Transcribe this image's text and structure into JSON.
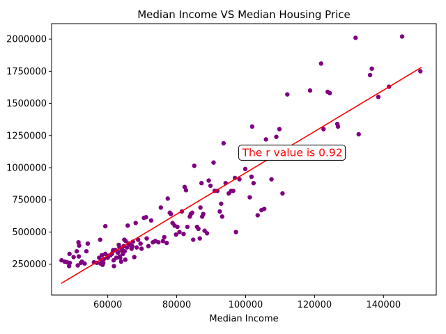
{
  "chart_data": {
    "type": "scatter",
    "title": "Median Income VS Median Housing Price",
    "xlabel": "Median Income",
    "ylabel": "",
    "xlim": [
      43700,
      155300
    ],
    "ylim": [
      10000,
      2120000
    ],
    "xticks": [
      60000,
      80000,
      100000,
      120000,
      140000
    ],
    "yticks": [
      250000,
      500000,
      750000,
      1000000,
      1250000,
      1500000,
      1750000,
      2000000
    ],
    "xtick_labels": [
      "60000",
      "80000",
      "100000",
      "120000",
      "140000"
    ],
    "ytick_labels": [
      "250000",
      "500000",
      "750000",
      "1000000",
      "1250000",
      "1500000",
      "1750000",
      "2000000"
    ],
    "grid": false,
    "point_color": "#800080",
    "line_color": "#ff0000",
    "annotation": {
      "text": "The r value is 0.92",
      "color": "#ff0000",
      "x": 99000,
      "y": 1090000
    },
    "regression_line": {
      "x": [
        46500,
        151000
      ],
      "y": [
        100000,
        1780000
      ]
    },
    "series": [
      {
        "points": [
          [
            46600,
            280000
          ],
          [
            47500,
            270000
          ],
          [
            48200,
            265000
          ],
          [
            48800,
            235000
          ],
          [
            48900,
            330000
          ],
          [
            49000,
            260000
          ],
          [
            50100,
            305000
          ],
          [
            51000,
            350000
          ],
          [
            51300,
            240000
          ],
          [
            51500,
            420000
          ],
          [
            51600,
            310000
          ],
          [
            51700,
            395000
          ],
          [
            52200,
            260000
          ],
          [
            52500,
            270000
          ],
          [
            53300,
            255000
          ],
          [
            53800,
            350000
          ],
          [
            54200,
            410000
          ],
          [
            56000,
            265000
          ],
          [
            56800,
            260000
          ],
          [
            57500,
            300000
          ],
          [
            57800,
            440000
          ],
          [
            57900,
            255000
          ],
          [
            58200,
            280000
          ],
          [
            58300,
            320000
          ],
          [
            58500,
            245000
          ],
          [
            58700,
            260000
          ],
          [
            58900,
            290000
          ],
          [
            59300,
            330000
          ],
          [
            59300,
            545000
          ],
          [
            60000,
            300000
          ],
          [
            60300,
            315000
          ],
          [
            60800,
            320000
          ],
          [
            61200,
            330000
          ],
          [
            61500,
            350000
          ],
          [
            61600,
            360000
          ],
          [
            61700,
            280000
          ],
          [
            61800,
            235000
          ],
          [
            62200,
            360000
          ],
          [
            62500,
            300000
          ],
          [
            62900,
            340000
          ],
          [
            63100,
            345000
          ],
          [
            63200,
            400000
          ],
          [
            63400,
            380000
          ],
          [
            63500,
            310000
          ],
          [
            63600,
            300000
          ],
          [
            63900,
            270000
          ],
          [
            64200,
            360000
          ],
          [
            64400,
            330000
          ],
          [
            64600,
            390000
          ],
          [
            64800,
            440000
          ],
          [
            64900,
            350000
          ],
          [
            65100,
            285000
          ],
          [
            65200,
            430000
          ],
          [
            65600,
            380000
          ],
          [
            65800,
            550000
          ],
          [
            66100,
            410000
          ],
          [
            66400,
            400000
          ],
          [
            66900,
            370000
          ],
          [
            67100,
            390000
          ],
          [
            67300,
            425000
          ],
          [
            67700,
            305000
          ],
          [
            68100,
            570000
          ],
          [
            68400,
            380000
          ],
          [
            68800,
            440000
          ],
          [
            69500,
            410000
          ],
          [
            69800,
            370000
          ],
          [
            70500,
            610000
          ],
          [
            71100,
            615000
          ],
          [
            71300,
            450000
          ],
          [
            71800,
            390000
          ],
          [
            72600,
            590000
          ],
          [
            73100,
            420000
          ],
          [
            73800,
            430000
          ],
          [
            74700,
            420000
          ],
          [
            75400,
            690000
          ],
          [
            76000,
            430000
          ],
          [
            76400,
            460000
          ],
          [
            77100,
            415000
          ],
          [
            77400,
            760000
          ],
          [
            78000,
            650000
          ],
          [
            78300,
            640000
          ],
          [
            78800,
            570000
          ],
          [
            79400,
            550000
          ],
          [
            79800,
            480000
          ],
          [
            80200,
            540000
          ],
          [
            80800,
            500000
          ],
          [
            81500,
            660000
          ],
          [
            82000,
            485000
          ],
          [
            82300,
            850000
          ],
          [
            82700,
            825000
          ],
          [
            83100,
            540000
          ],
          [
            83800,
            620000
          ],
          [
            84100,
            640000
          ],
          [
            84500,
            650000
          ],
          [
            84800,
            440000
          ],
          [
            85100,
            1015000
          ],
          [
            85900,
            540000
          ],
          [
            86300,
            525000
          ],
          [
            86700,
            450000
          ],
          [
            86900,
            690000
          ],
          [
            87200,
            880000
          ],
          [
            87400,
            620000
          ],
          [
            87700,
            640000
          ],
          [
            88100,
            510000
          ],
          [
            88800,
            490000
          ],
          [
            89300,
            900000
          ],
          [
            89800,
            860000
          ],
          [
            90700,
            1040000
          ],
          [
            91000,
            820000
          ],
          [
            91800,
            820000
          ],
          [
            92500,
            660000
          ],
          [
            92900,
            720000
          ],
          [
            93200,
            620000
          ],
          [
            93600,
            1190000
          ],
          [
            94200,
            880000
          ],
          [
            95100,
            800000
          ],
          [
            95800,
            820000
          ],
          [
            96400,
            820000
          ],
          [
            96900,
            920000
          ],
          [
            97200,
            500000
          ],
          [
            98200,
            910000
          ],
          [
            99900,
            990000
          ],
          [
            101200,
            770000
          ],
          [
            101700,
            930000
          ],
          [
            101900,
            1320000
          ],
          [
            102300,
            880000
          ],
          [
            103500,
            630000
          ],
          [
            104600,
            670000
          ],
          [
            105400,
            680000
          ],
          [
            105900,
            1220000
          ],
          [
            107500,
            910000
          ],
          [
            108900,
            1240000
          ],
          [
            109800,
            1300000
          ],
          [
            110700,
            800000
          ],
          [
            112100,
            1570000
          ],
          [
            118700,
            1600000
          ],
          [
            121900,
            1810000
          ],
          [
            122600,
            1300000
          ],
          [
            123800,
            1590000
          ],
          [
            124400,
            1580000
          ],
          [
            126600,
            1340000
          ],
          [
            126800,
            1320000
          ],
          [
            131900,
            2010000
          ],
          [
            132800,
            1260000
          ],
          [
            136100,
            1720000
          ],
          [
            136600,
            1770000
          ],
          [
            138500,
            1550000
          ],
          [
            141600,
            1630000
          ],
          [
            145400,
            2020000
          ],
          [
            150700,
            1750000
          ]
        ]
      }
    ]
  }
}
